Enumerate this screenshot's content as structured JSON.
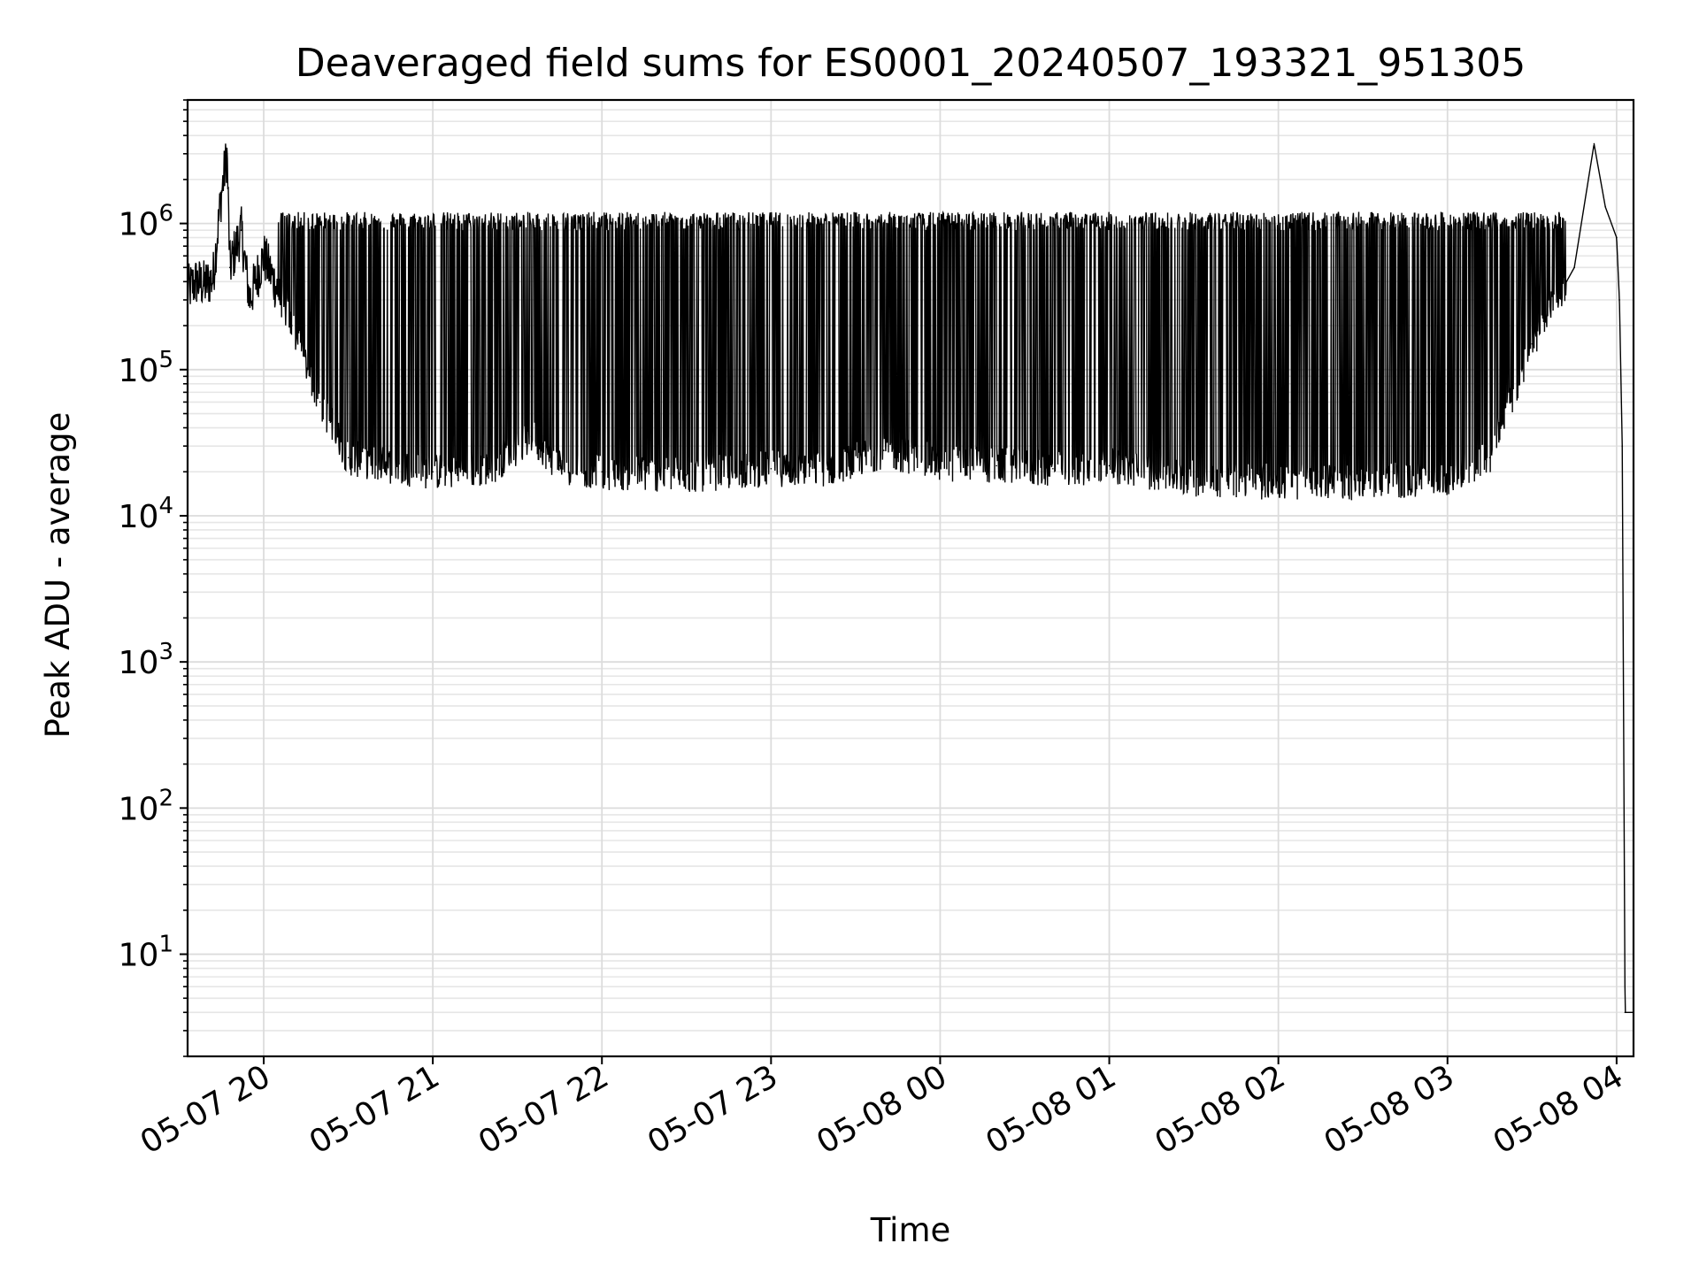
{
  "chart_data": {
    "type": "line",
    "title": "Deaveraged field sums for ES0001_20240507_193321_951305",
    "xlabel": "Time",
    "ylabel": "Peak ADU - average",
    "yscale": "log",
    "ylim": [
      2,
      7000000
    ],
    "xlim": [
      "2024-05-07 19:33",
      "2024-05-08 04:06"
    ],
    "grid": true,
    "line_color": "#000000",
    "x_ticks": [
      {
        "value": "2024-05-07 20:00",
        "label": "05-07 20"
      },
      {
        "value": "2024-05-07 21:00",
        "label": "05-07 21"
      },
      {
        "value": "2024-05-07 22:00",
        "label": "05-07 22"
      },
      {
        "value": "2024-05-07 23:00",
        "label": "05-07 23"
      },
      {
        "value": "2024-05-08 00:00",
        "label": "05-08 00"
      },
      {
        "value": "2024-05-08 01:00",
        "label": "05-08 01"
      },
      {
        "value": "2024-05-08 02:00",
        "label": "05-08 02"
      },
      {
        "value": "2024-05-08 03:00",
        "label": "05-08 03"
      },
      {
        "value": "2024-05-08 04:00",
        "label": "05-08 04"
      }
    ],
    "y_ticks": [
      {
        "value": 10,
        "base": "10",
        "exp": "1"
      },
      {
        "value": 100,
        "base": "10",
        "exp": "2"
      },
      {
        "value": 1000,
        "base": "10",
        "exp": "3"
      },
      {
        "value": 10000,
        "base": "10",
        "exp": "4"
      },
      {
        "value": 100000,
        "base": "10",
        "exp": "5"
      },
      {
        "value": 1000000,
        "base": "10",
        "exp": "6"
      }
    ],
    "series": [
      {
        "points": [
          [
            "2024-05-07 19:33",
            350000
          ],
          [
            "2024-05-07 19:36",
            400000
          ],
          [
            "2024-05-07 19:39",
            380000
          ],
          [
            "2024-05-07 19:42",
            420000
          ],
          [
            "2024-05-07 19:45",
            1600000
          ],
          [
            "2024-05-07 19:47",
            3000000
          ],
          [
            "2024-05-07 19:48",
            500000
          ],
          [
            "2024-05-07 19:52",
            900000
          ],
          [
            "2024-05-07 19:55",
            300000
          ],
          [
            "2024-05-07 20:00",
            600000
          ],
          [
            "2024-05-07 20:10",
            200000
          ],
          [
            "2024-05-07 20:20",
            60000
          ],
          [
            "2024-05-07 20:30",
            25000
          ],
          [
            "2024-05-07 20:45",
            22000
          ],
          [
            "2024-05-07 21:00",
            20000
          ],
          [
            "2024-05-07 21:20",
            21000
          ],
          [
            "2024-05-07 21:35",
            35000
          ],
          [
            "2024-05-07 21:45",
            22000
          ],
          [
            "2024-05-07 22:00",
            20000
          ],
          [
            "2024-05-07 22:30",
            19000
          ],
          [
            "2024-05-07 23:00",
            21000
          ],
          [
            "2024-05-07 23:20",
            21000
          ],
          [
            "2024-05-07 23:40",
            28000
          ],
          [
            "2024-05-08 00:00",
            23000
          ],
          [
            "2024-05-08 00:20",
            22000
          ],
          [
            "2024-05-08 00:40",
            21000
          ],
          [
            "2024-05-08 01:00",
            22000
          ],
          [
            "2024-05-08 01:30",
            18000
          ],
          [
            "2024-05-08 02:00",
            17000
          ],
          [
            "2024-05-08 02:30",
            17000
          ],
          [
            "2024-05-08 03:00",
            18000
          ],
          [
            "2024-05-08 03:15",
            25000
          ],
          [
            "2024-05-08 03:30",
            150000
          ],
          [
            "2024-05-08 03:45",
            500000
          ],
          [
            "2024-05-08 03:52",
            3500000
          ],
          [
            "2024-05-08 03:56",
            1300000
          ],
          [
            "2024-05-08 04:00",
            800000
          ],
          [
            "2024-05-08 04:01",
            300000
          ],
          [
            "2024-05-08 04:02",
            30000
          ],
          [
            "2024-05-08 04:03",
            4
          ],
          [
            "2024-05-08 04:06",
            4
          ]
        ]
      }
    ]
  }
}
